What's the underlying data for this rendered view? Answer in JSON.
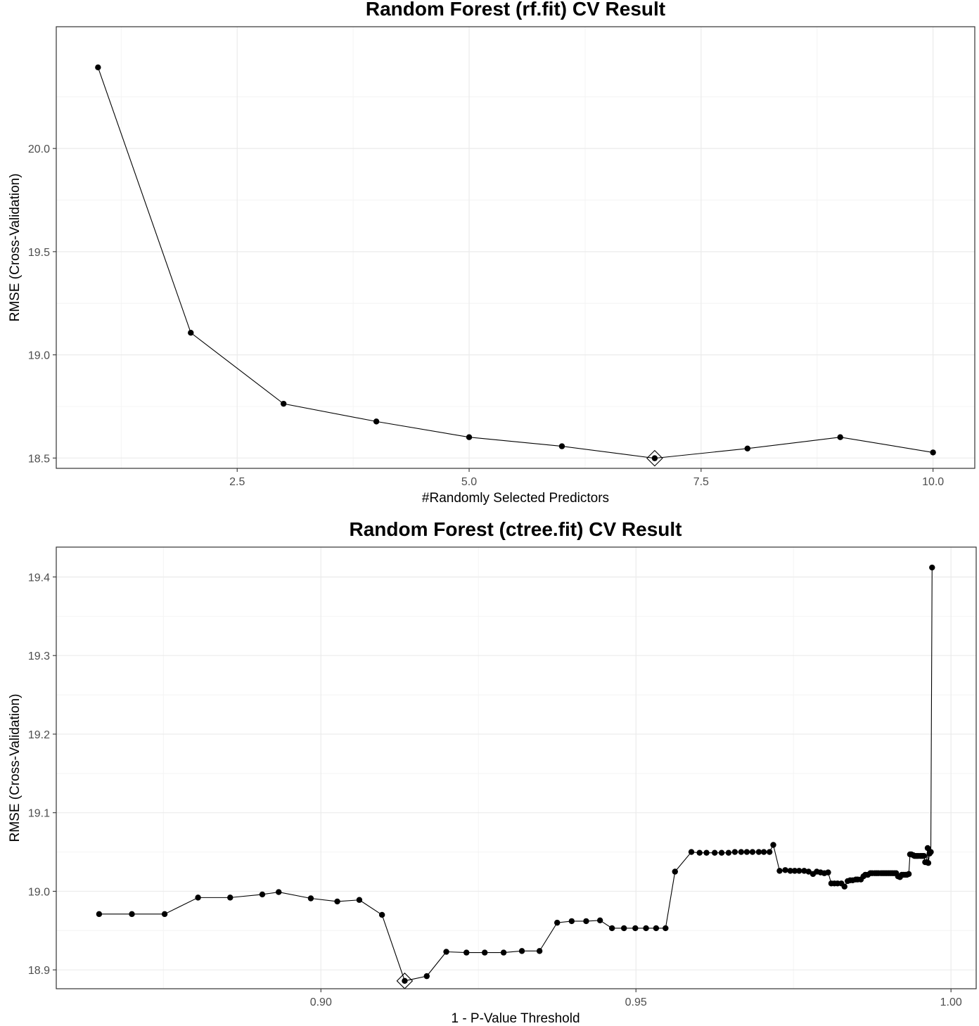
{
  "chart_data": [
    {
      "type": "line",
      "title": "Random Forest (rf.fit) CV Result",
      "xlabel": "#Randomly Selected Predictors",
      "ylabel": "RMSE (Cross-Validation)",
      "xlim": [
        0.55,
        10.45
      ],
      "ylim": [
        18.45,
        20.59
      ],
      "x_ticks": [
        2.5,
        5.0,
        7.5,
        10.0
      ],
      "x_tick_labels": [
        "2.5",
        "5.0",
        "7.5",
        "10.0"
      ],
      "y_ticks": [
        18.5,
        19.0,
        19.5,
        20.0
      ],
      "y_tick_labels": [
        "18.5",
        "19.0",
        "19.5",
        "20.0"
      ],
      "grid": true,
      "x": [
        1,
        2,
        3,
        4,
        5,
        6,
        7,
        8,
        9,
        10
      ],
      "y": [
        20.393,
        19.107,
        18.763,
        18.677,
        18.601,
        18.557,
        18.499,
        18.546,
        18.601,
        18.527
      ],
      "best_index": 6
    },
    {
      "type": "line",
      "title": "Random Forest (ctree.fit) CV Result",
      "xlabel": "1 - P-Value Threshold",
      "ylabel": "RMSE (Cross-Validation)",
      "xlim": [
        0.858,
        1.004
      ],
      "ylim": [
        18.876,
        19.438
      ],
      "x_ticks": [
        0.9,
        0.95,
        1.0
      ],
      "x_tick_labels": [
        "0.90",
        "0.95",
        "1.00"
      ],
      "y_ticks": [
        18.9,
        19.0,
        19.1,
        19.2,
        19.3,
        19.4
      ],
      "y_tick_labels": [
        "18.9",
        "19.0",
        "19.1",
        "19.2",
        "19.3",
        "19.4"
      ],
      "grid": true,
      "x": [
        0.8648,
        0.87,
        0.8752,
        0.8805,
        0.8856,
        0.8907,
        0.8933,
        0.8984,
        0.9026,
        0.9061,
        0.9097,
        0.9133,
        0.9168,
        0.9199,
        0.9231,
        0.926,
        0.929,
        0.9319,
        0.9347,
        0.9375,
        0.9398,
        0.9421,
        0.9443,
        0.9462,
        0.9481,
        0.9499,
        0.9516,
        0.9532,
        0.9547,
        0.9562,
        0.9588,
        0.9601,
        0.9612,
        0.9625,
        0.9636,
        0.9647,
        0.9657,
        0.9667,
        0.9676,
        0.9685,
        0.9695,
        0.9703,
        0.9712,
        0.9718,
        0.9728,
        0.9737,
        0.9745,
        0.9752,
        0.9759,
        0.9767,
        0.9774,
        0.9781,
        0.9787,
        0.9793,
        0.9799,
        0.9805,
        0.981,
        0.9815,
        0.982,
        0.9826,
        0.9831,
        0.9836,
        0.984,
        0.9844,
        0.9849,
        0.9852,
        0.9857,
        0.9861,
        0.9864,
        0.9868,
        0.9872,
        0.9875,
        0.9879,
        0.9882,
        0.9885,
        0.9889,
        0.9892,
        0.9895,
        0.9898,
        0.9901,
        0.9904,
        0.9907,
        0.991,
        0.9913,
        0.9916,
        0.9919,
        0.9922,
        0.9925,
        0.9928,
        0.993,
        0.9933,
        0.9935,
        0.9937,
        0.994,
        0.9942,
        0.9944,
        0.9946,
        0.9948,
        0.9951,
        0.9953,
        0.9955,
        0.9957,
        0.9959,
        0.9961,
        0.9963,
        0.9964,
        0.9966,
        0.9968,
        0.997
      ],
      "y": [
        18.971,
        18.971,
        18.971,
        18.992,
        18.992,
        18.996,
        18.999,
        18.991,
        18.987,
        18.989,
        18.97,
        18.886,
        18.892,
        18.923,
        18.922,
        18.922,
        18.922,
        18.924,
        18.924,
        18.96,
        18.962,
        18.962,
        18.963,
        18.953,
        18.953,
        18.953,
        18.953,
        18.953,
        18.953,
        19.025,
        19.05,
        19.049,
        19.049,
        19.049,
        19.049,
        19.049,
        19.05,
        19.05,
        19.05,
        19.05,
        19.05,
        19.05,
        19.05,
        19.059,
        19.026,
        19.027,
        19.026,
        19.026,
        19.026,
        19.026,
        19.025,
        19.022,
        19.025,
        19.024,
        19.023,
        19.024,
        19.01,
        19.01,
        19.01,
        19.01,
        19.006,
        19.013,
        19.014,
        19.014,
        19.015,
        19.015,
        19.015,
        19.019,
        19.021,
        19.021,
        19.023,
        19.023,
        19.023,
        19.023,
        19.023,
        19.023,
        19.023,
        19.023,
        19.023,
        19.023,
        19.023,
        19.023,
        19.023,
        19.023,
        19.019,
        19.018,
        19.021,
        19.021,
        19.021,
        19.021,
        19.022,
        19.047,
        19.047,
        19.046,
        19.045,
        19.045,
        19.045,
        19.045,
        19.045,
        19.045,
        19.045,
        19.045,
        19.037,
        19.037,
        19.055,
        19.036,
        19.048,
        19.05,
        19.412
      ],
      "best_index": 11
    }
  ]
}
